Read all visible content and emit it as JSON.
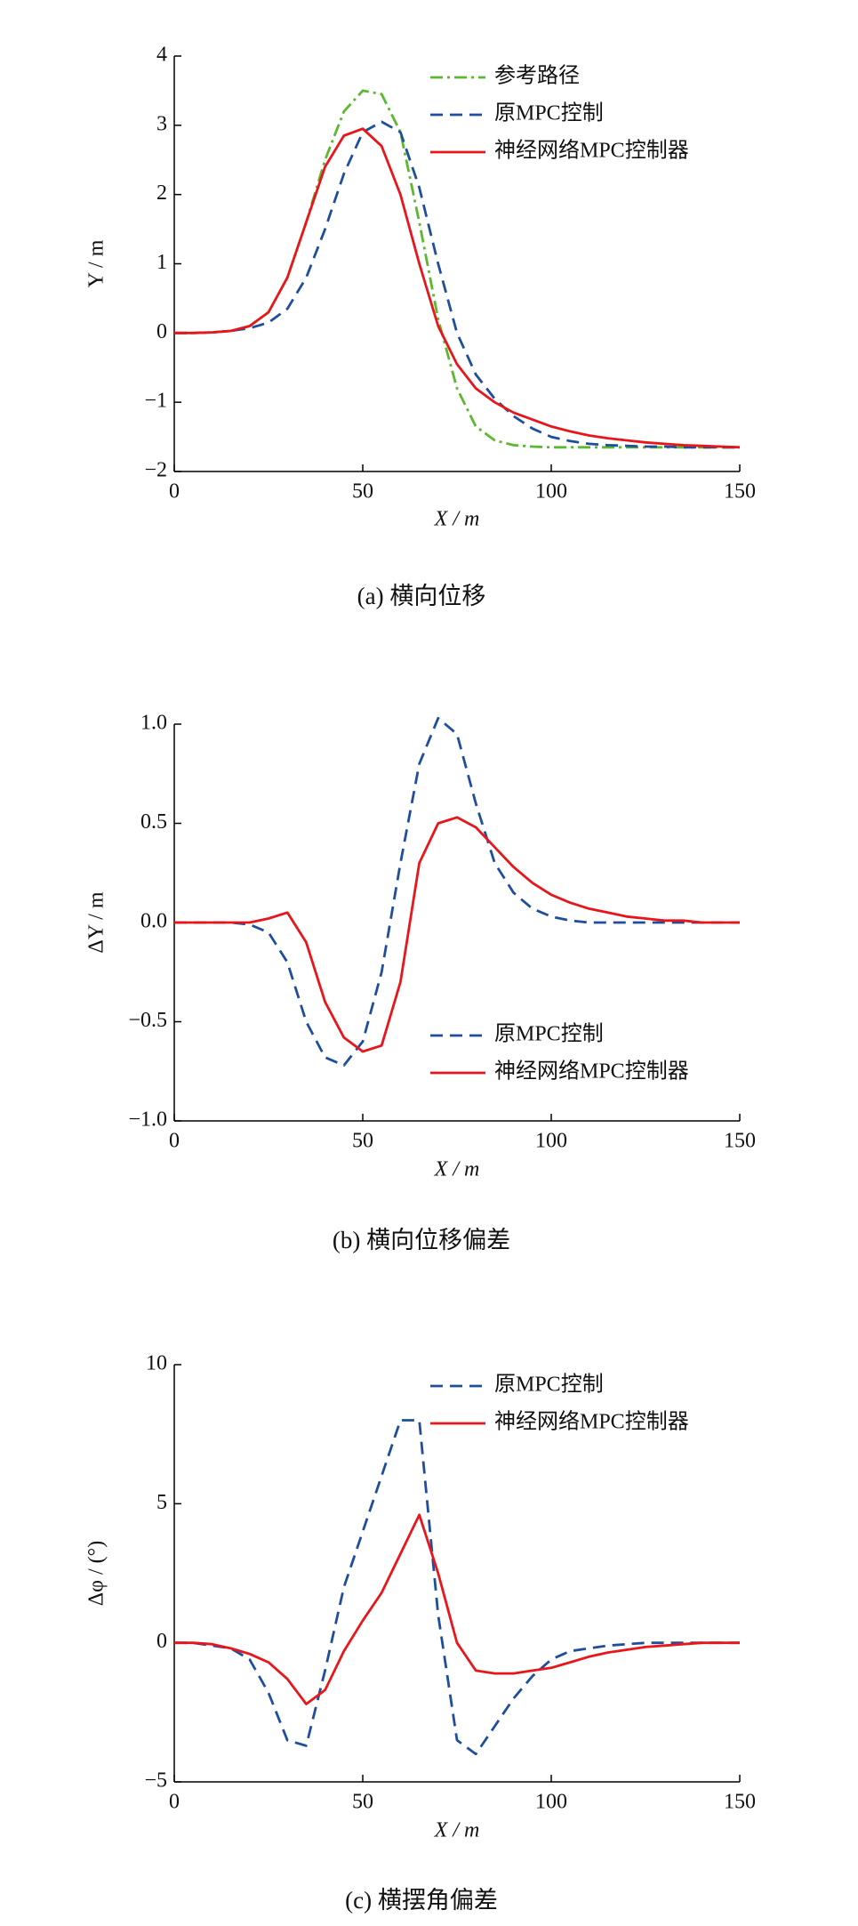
{
  "chart_data": [
    {
      "type": "line",
      "caption": "(a)  横向位移",
      "xlabel": "X / m",
      "ylabel": "Y / m",
      "x": [
        0,
        5,
        10,
        15,
        20,
        25,
        30,
        35,
        40,
        45,
        50,
        55,
        60,
        65,
        70,
        75,
        80,
        85,
        90,
        95,
        100,
        105,
        110,
        115,
        120,
        125,
        130,
        135,
        140,
        145,
        150
      ],
      "xlim": [
        0,
        150
      ],
      "xticks": [
        0,
        50,
        100,
        150
      ],
      "ylim": [
        -2,
        4
      ],
      "yticks": [
        {
          "value": -2,
          "label": "−2"
        },
        {
          "value": -1,
          "label": "−1"
        },
        0,
        1,
        2,
        3,
        4
      ],
      "legend": "upper right",
      "series": [
        {
          "name": "参考路径",
          "color": "#5cb82e",
          "style": "dashdot",
          "values": [
            0,
            0,
            0.01,
            0.03,
            0.1,
            0.3,
            0.8,
            1.6,
            2.5,
            3.2,
            3.5,
            3.45,
            2.9,
            1.6,
            0.2,
            -0.8,
            -1.35,
            -1.55,
            -1.62,
            -1.64,
            -1.65,
            -1.65,
            -1.65,
            -1.65,
            -1.65,
            -1.65,
            -1.65,
            -1.65,
            -1.65,
            -1.65,
            -1.65
          ]
        },
        {
          "name": "原MPC控制",
          "color": "#1f4e9c",
          "style": "dashed",
          "values": [
            0,
            0,
            0.01,
            0.03,
            0.07,
            0.15,
            0.35,
            0.8,
            1.5,
            2.3,
            2.9,
            3.05,
            2.9,
            2.1,
            1.0,
            0.0,
            -0.6,
            -0.95,
            -1.2,
            -1.38,
            -1.5,
            -1.56,
            -1.6,
            -1.62,
            -1.63,
            -1.64,
            -1.64,
            -1.65,
            -1.65,
            -1.65,
            -1.65
          ]
        },
        {
          "name": "神经网络MPC控制器",
          "color": "#e8161b",
          "style": "solid",
          "values": [
            0,
            0,
            0.01,
            0.03,
            0.1,
            0.3,
            0.8,
            1.6,
            2.4,
            2.85,
            2.95,
            2.7,
            2.0,
            1.0,
            0.1,
            -0.45,
            -0.8,
            -1.0,
            -1.15,
            -1.25,
            -1.35,
            -1.42,
            -1.48,
            -1.52,
            -1.55,
            -1.58,
            -1.6,
            -1.62,
            -1.63,
            -1.64,
            -1.65
          ]
        }
      ]
    },
    {
      "type": "line",
      "caption": "(b)  横向位移偏差",
      "xlabel": "X / m",
      "ylabel": "ΔY / m",
      "x": [
        0,
        5,
        10,
        15,
        20,
        25,
        30,
        35,
        40,
        45,
        50,
        55,
        60,
        65,
        70,
        75,
        80,
        85,
        90,
        95,
        100,
        105,
        110,
        115,
        120,
        125,
        130,
        135,
        140,
        145,
        150
      ],
      "xlim": [
        0,
        150
      ],
      "xticks": [
        0,
        50,
        100,
        150
      ],
      "ylim": [
        -1,
        1
      ],
      "yticks": [
        {
          "value": -1,
          "label": "−1.0"
        },
        {
          "value": -0.5,
          "label": "−0.5"
        },
        {
          "value": 0,
          "label": "0.0"
        },
        0.5,
        {
          "value": 1,
          "label": "1.0"
        }
      ],
      "legend": "lower right",
      "series": [
        {
          "name": "原MPC控制",
          "color": "#1f4e9c",
          "style": "dashed",
          "values": [
            0,
            0,
            0,
            0,
            -0.01,
            -0.05,
            -0.2,
            -0.5,
            -0.68,
            -0.72,
            -0.6,
            -0.25,
            0.3,
            0.8,
            1.03,
            0.95,
            0.6,
            0.3,
            0.15,
            0.07,
            0.03,
            0.01,
            0,
            0,
            0,
            0,
            0,
            0,
            0,
            0,
            0
          ]
        },
        {
          "name": "神经网络MPC控制器",
          "color": "#e8161b",
          "style": "solid",
          "values": [
            0,
            0,
            0,
            0,
            0,
            0.02,
            0.05,
            -0.1,
            -0.4,
            -0.58,
            -0.65,
            -0.62,
            -0.3,
            0.3,
            0.5,
            0.53,
            0.48,
            0.38,
            0.28,
            0.2,
            0.14,
            0.1,
            0.07,
            0.05,
            0.03,
            0.02,
            0.01,
            0.01,
            0,
            0,
            0
          ]
        }
      ]
    },
    {
      "type": "line",
      "caption": "(c)  横摆角偏差",
      "xlabel": "X / m",
      "ylabel": "Δφ / (°)",
      "x": [
        0,
        5,
        10,
        15,
        20,
        25,
        30,
        35,
        40,
        45,
        50,
        55,
        60,
        65,
        70,
        75,
        80,
        85,
        90,
        95,
        100,
        105,
        110,
        115,
        120,
        125,
        130,
        135,
        140,
        145,
        150
      ],
      "xlim": [
        0,
        150
      ],
      "xticks": [
        0,
        50,
        100,
        150
      ],
      "ylim": [
        -5,
        10
      ],
      "yticks": [
        {
          "value": -5,
          "label": "−5"
        },
        0,
        5,
        10
      ],
      "legend": "upper right",
      "series": [
        {
          "name": "原MPC控制",
          "color": "#1f4e9c",
          "style": "dashed",
          "values": [
            0,
            0,
            -0.1,
            -0.2,
            -0.6,
            -1.8,
            -3.5,
            -3.7,
            -1,
            2,
            4,
            6,
            8,
            8,
            1,
            -3.5,
            -4,
            -3,
            -2,
            -1.2,
            -0.6,
            -0.3,
            -0.2,
            -0.1,
            -0.05,
            0,
            0,
            0,
            0,
            0,
            0
          ]
        },
        {
          "name": "神经网络MPC控制器",
          "color": "#e8161b",
          "style": "solid",
          "values": [
            0,
            0,
            -0.05,
            -0.2,
            -0.4,
            -0.7,
            -1.3,
            -2.2,
            -1.7,
            -0.3,
            0.8,
            1.8,
            3.2,
            4.6,
            2.5,
            0,
            -1,
            -1.1,
            -1.1,
            -1,
            -0.9,
            -0.7,
            -0.5,
            -0.35,
            -0.25,
            -0.15,
            -0.1,
            -0.05,
            0,
            0,
            0
          ]
        }
      ]
    }
  ]
}
